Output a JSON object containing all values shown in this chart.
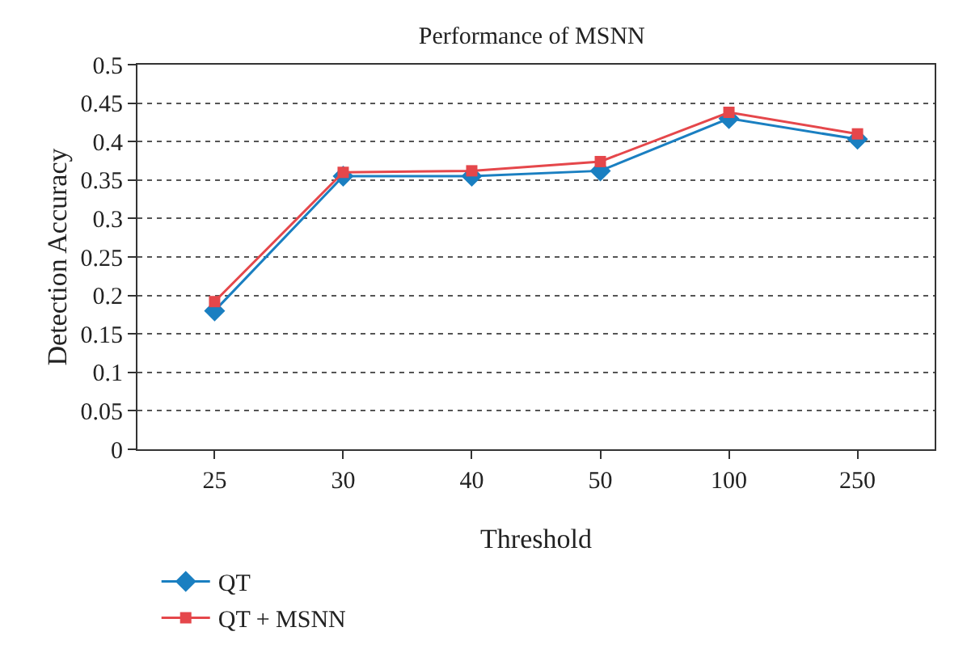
{
  "chart_data": {
    "type": "line",
    "title": "Performance of MSNN",
    "xlabel": "Threshold",
    "ylabel": "Detection Accuracy",
    "categories": [
      "25",
      "30",
      "40",
      "50",
      "100",
      "250"
    ],
    "series": [
      {
        "name": "QT",
        "color": "#1a7fc1",
        "marker": "diamond",
        "values": [
          0.18,
          0.355,
          0.355,
          0.362,
          0.43,
          0.403
        ]
      },
      {
        "name": "QT + MSNN",
        "color": "#e5474b",
        "marker": "square",
        "values": [
          0.192,
          0.36,
          0.362,
          0.374,
          0.438,
          0.41
        ]
      }
    ],
    "ylim": [
      0,
      0.5
    ],
    "yticks": [
      0,
      0.05,
      0.1,
      0.15,
      0.2,
      0.25,
      0.3,
      0.35,
      0.4,
      0.45,
      0.5
    ],
    "grid": "y",
    "legend": "bottom left",
    "line_style": "solid"
  }
}
